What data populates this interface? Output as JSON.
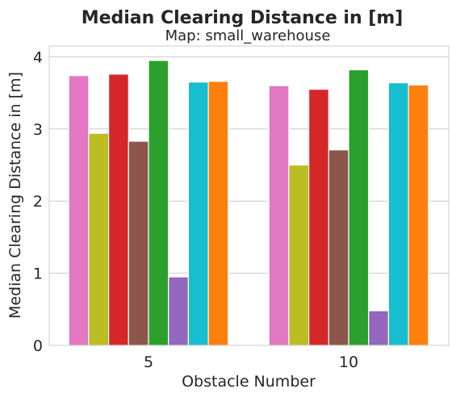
{
  "chart_data": {
    "type": "bar",
    "title": "Median Clearing Distance in [m]",
    "subtitle": "Map: small_warehouse",
    "xlabel": "Obstacle Number",
    "ylabel": "Median Clearing Distance in [m]",
    "ylim": [
      0,
      4.15
    ],
    "yticks": [
      "0",
      "1",
      "2",
      "3",
      "4"
    ],
    "categories": [
      "5",
      "10"
    ],
    "grid": true,
    "series": [
      {
        "color": "#e377c2",
        "values": [
          3.74,
          3.6
        ]
      },
      {
        "color": "#bcbd22",
        "values": [
          2.94,
          2.5
        ]
      },
      {
        "color": "#d62728",
        "values": [
          3.76,
          3.55
        ]
      },
      {
        "color": "#8c564b",
        "values": [
          2.83,
          2.71
        ]
      },
      {
        "color": "#2ca02c",
        "values": [
          3.95,
          3.82
        ]
      },
      {
        "color": "#9467bd",
        "values": [
          0.95,
          0.48
        ]
      },
      {
        "color": "#17becf",
        "values": [
          3.65,
          3.64
        ]
      },
      {
        "color": "#ff7f0e",
        "values": [
          3.66,
          3.61
        ]
      }
    ]
  }
}
